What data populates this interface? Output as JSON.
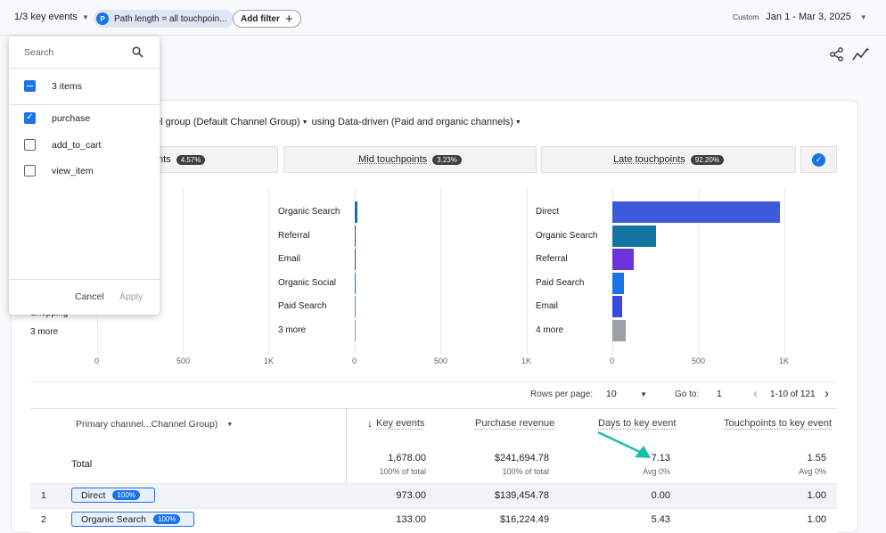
{
  "topbar": {
    "key_events": "1/3 key events",
    "path_chip_badge": "P",
    "path_chip": "Path length = all touchpoin...",
    "add_filter": "Add filter",
    "custom_label": "Custom",
    "date_range": "Jan 1 - Mar 3, 2025"
  },
  "heading": {
    "channel_group": "el group (Default Channel Group)",
    "model": "using Data-driven (Paid and organic channels)"
  },
  "segments": [
    {
      "label": "nts",
      "pct": "4.57%"
    },
    {
      "label": "Mid touchpoints",
      "pct": "3.23%"
    },
    {
      "label": "Late touchpoints",
      "pct": "92.20%"
    }
  ],
  "chart_data": [
    {
      "type": "bar",
      "title": "Early touchpoints",
      "categories": [
        "Shopping",
        "3 more"
      ],
      "values": [
        0,
        0
      ],
      "xlim": [
        0,
        1000
      ],
      "ticks": [
        "0",
        "500",
        "1K"
      ]
    },
    {
      "type": "bar",
      "title": "Mid touchpoints",
      "categories": [
        "Organic Search",
        "Referral",
        "Email",
        "Organic Social",
        "Paid Search",
        "3 more"
      ],
      "values": [
        16,
        6,
        1,
        1,
        0.5,
        0.5
      ],
      "colors": [
        "#12759f",
        "#5a2bd8",
        "#3b3fd0",
        "#1a73e8",
        "#4c8bf5",
        "#9aa0a6"
      ],
      "xlim": [
        0,
        1000
      ],
      "ticks": [
        "0",
        "500",
        "1K"
      ]
    },
    {
      "type": "bar",
      "title": "Late touchpoints",
      "categories": [
        "Direct",
        "Organic Search",
        "Referral",
        "Paid Search",
        "Email",
        "4 more"
      ],
      "values": [
        973,
        255,
        125,
        68,
        57,
        80
      ],
      "colors": [
        "#3b5bdb",
        "#12759f",
        "#6d32d9",
        "#1a73e8",
        "#3949e0",
        "#9aa0a6"
      ],
      "xlim": [
        0,
        1000
      ],
      "ticks": [
        "0",
        "500",
        "1K"
      ]
    }
  ],
  "pagination": {
    "rows_label": "Rows per page:",
    "rows_value": "10",
    "goto_label": "Go to:",
    "goto_value": "1",
    "range": "1-10 of 121"
  },
  "table": {
    "dim_header": "Primary channel...Channel Group)",
    "headers": [
      "Key events",
      "Purchase revenue",
      "Days to key event",
      "Touchpoints to key event"
    ],
    "total_label": "Total",
    "totals": [
      "1,678.00",
      "$241,694.78",
      "7.13",
      "1.55"
    ],
    "totals_sub": [
      "100% of total",
      "100% of total",
      "Avg 0%",
      "Avg 0%"
    ],
    "rows": [
      {
        "idx": "1",
        "channel": "Direct",
        "pct": "100%",
        "values": [
          "973.00",
          "$139,454.78",
          "0.00",
          "1.00"
        ]
      },
      {
        "idx": "2",
        "channel": "Organic Search",
        "pct": "100%",
        "values": [
          "133.00",
          "$16,224.49",
          "5.43",
          "1.00"
        ]
      }
    ]
  },
  "menu": {
    "search_placeholder": "Search",
    "select_all": "3 items",
    "items": [
      {
        "label": "purchase",
        "checked": true
      },
      {
        "label": "add_to_cart",
        "checked": false
      },
      {
        "label": "view_item",
        "checked": false
      }
    ],
    "cancel": "Cancel",
    "apply": "Apply"
  },
  "colors": {
    "accent": "#1a73e8",
    "arrow": "#1bbfa5"
  }
}
